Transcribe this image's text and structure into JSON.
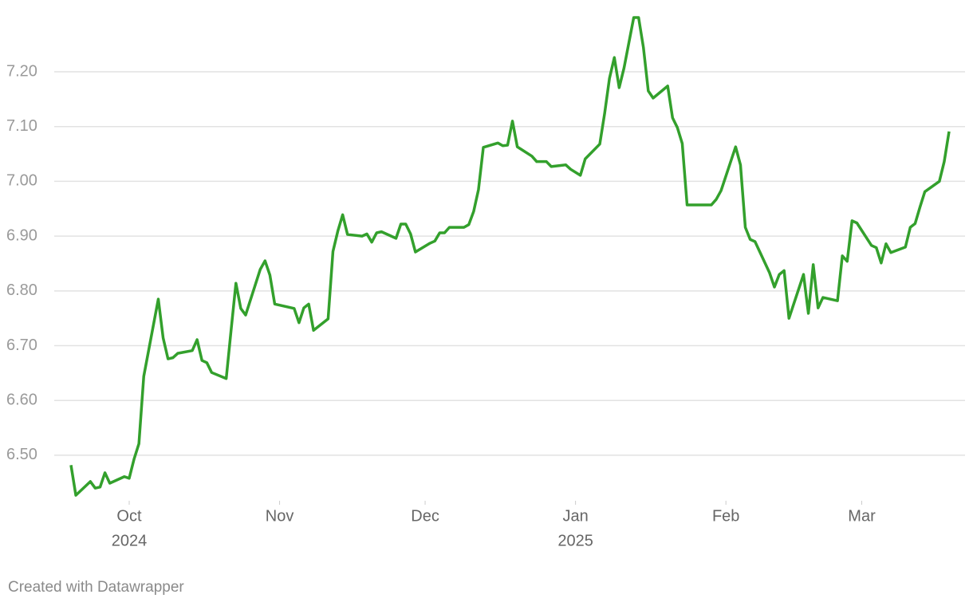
{
  "chart_data": {
    "type": "line",
    "footer": "Created with Datawrapper",
    "xlim": [
      -12,
      169
    ],
    "ylim": [
      6.42,
      7.3
    ],
    "xticks": [
      {
        "value": 0,
        "label": "Oct"
      },
      {
        "value": 31,
        "label": "Nov"
      },
      {
        "value": 61,
        "label": "Dec"
      },
      {
        "value": 92,
        "label": "Jan"
      },
      {
        "value": 123,
        "label": "Feb"
      },
      {
        "value": 151,
        "label": "Mar"
      }
    ],
    "x_year_labels": [
      {
        "value": 0,
        "label": "2024"
      },
      {
        "value": 92,
        "label": "2025"
      }
    ],
    "yticks": [
      {
        "value": 6.5,
        "label": "6.50"
      },
      {
        "value": 6.6,
        "label": "6.60"
      },
      {
        "value": 6.7,
        "label": "6.70"
      },
      {
        "value": 6.8,
        "label": "6.80"
      },
      {
        "value": 6.9,
        "label": "6.90"
      },
      {
        "value": 7.0,
        "label": "7.00"
      },
      {
        "value": 7.1,
        "label": "7.10"
      },
      {
        "value": 7.2,
        "label": "7.20"
      }
    ],
    "grid": true,
    "series": [
      {
        "color": "#33a02c",
        "x": [
          -12,
          -11,
          -8,
          -7,
          -6,
          -5,
          -4,
          -1,
          0,
          1,
          2,
          3,
          6,
          7,
          8,
          9,
          10,
          13,
          14,
          15,
          16,
          17,
          20,
          21,
          22,
          23,
          24,
          27,
          28,
          29,
          30,
          34,
          35,
          36,
          37,
          38,
          41,
          42,
          43,
          44,
          45,
          48,
          49,
          50,
          51,
          52,
          55,
          56,
          57,
          58,
          59,
          62,
          63,
          64,
          65,
          66,
          69,
          70,
          71,
          72,
          73,
          76,
          77,
          78,
          79,
          80,
          83,
          84,
          86,
          87,
          90,
          91,
          93,
          94,
          97,
          98,
          99,
          100,
          101,
          102,
          104,
          105,
          106,
          107,
          108,
          111,
          112,
          113,
          114,
          115,
          120,
          121,
          122,
          125,
          126,
          127,
          128,
          129,
          132,
          133,
          134,
          135,
          136,
          139,
          140,
          141,
          142,
          143,
          146,
          147,
          148,
          149,
          150,
          153,
          154,
          155,
          156,
          157,
          160,
          161,
          162,
          163,
          164,
          167,
          168,
          169
        ],
        "values": [
          6.482,
          6.427,
          6.452,
          6.44,
          6.442,
          6.468,
          6.449,
          6.461,
          6.458,
          6.493,
          6.521,
          6.644,
          6.785,
          6.714,
          6.676,
          6.678,
          6.686,
          6.691,
          6.711,
          6.673,
          6.669,
          6.651,
          6.64,
          6.728,
          6.814,
          6.768,
          6.756,
          6.839,
          6.855,
          6.829,
          6.776,
          6.768,
          6.742,
          6.769,
          6.776,
          6.728,
          6.749,
          6.872,
          6.909,
          6.939,
          6.903,
          6.9,
          6.904,
          6.889,
          6.906,
          6.908,
          6.896,
          6.922,
          6.922,
          6.904,
          6.871,
          6.887,
          6.891,
          6.906,
          6.906,
          6.916,
          6.916,
          6.921,
          6.945,
          6.985,
          7.062,
          7.07,
          7.065,
          7.066,
          7.11,
          7.063,
          7.046,
          7.036,
          7.036,
          7.027,
          7.03,
          7.022,
          7.011,
          7.041,
          7.068,
          7.124,
          7.188,
          7.226,
          7.171,
          7.207,
          7.299,
          7.299,
          7.244,
          7.165,
          7.152,
          7.174,
          7.116,
          7.098,
          7.069,
          6.957,
          6.957,
          6.967,
          6.983,
          7.063,
          7.03,
          6.916,
          6.894,
          6.89,
          6.833,
          6.807,
          6.83,
          6.837,
          6.75,
          6.83,
          6.759,
          6.848,
          6.769,
          6.788,
          6.782,
          6.864,
          6.854,
          6.928,
          6.924,
          6.883,
          6.879,
          6.851,
          6.886,
          6.87,
          6.88,
          6.916,
          6.923,
          6.953,
          6.981,
          7.0,
          7.036,
          7.091
        ]
      }
    ]
  }
}
